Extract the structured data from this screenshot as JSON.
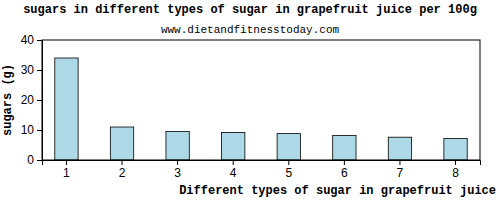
{
  "chart_data": {
    "type": "bar",
    "title": "sugars in different types of sugar in grapefruit juice per 100g",
    "subtitle": "www.dietandfitnesstoday.com",
    "x_label": "Different types of sugar in grapefruit juice",
    "y_label": "sugars (g)",
    "categories": [
      "1",
      "2",
      "3",
      "4",
      "5",
      "6",
      "7",
      "8"
    ],
    "values": [
      34,
      11,
      9.5,
      9.2,
      8.8,
      8.2,
      7.6,
      7.2
    ],
    "color": "#add8e6",
    "ylim": [
      0,
      40
    ],
    "yticks": [
      0,
      10,
      20,
      30,
      40
    ],
    "grid": false
  }
}
